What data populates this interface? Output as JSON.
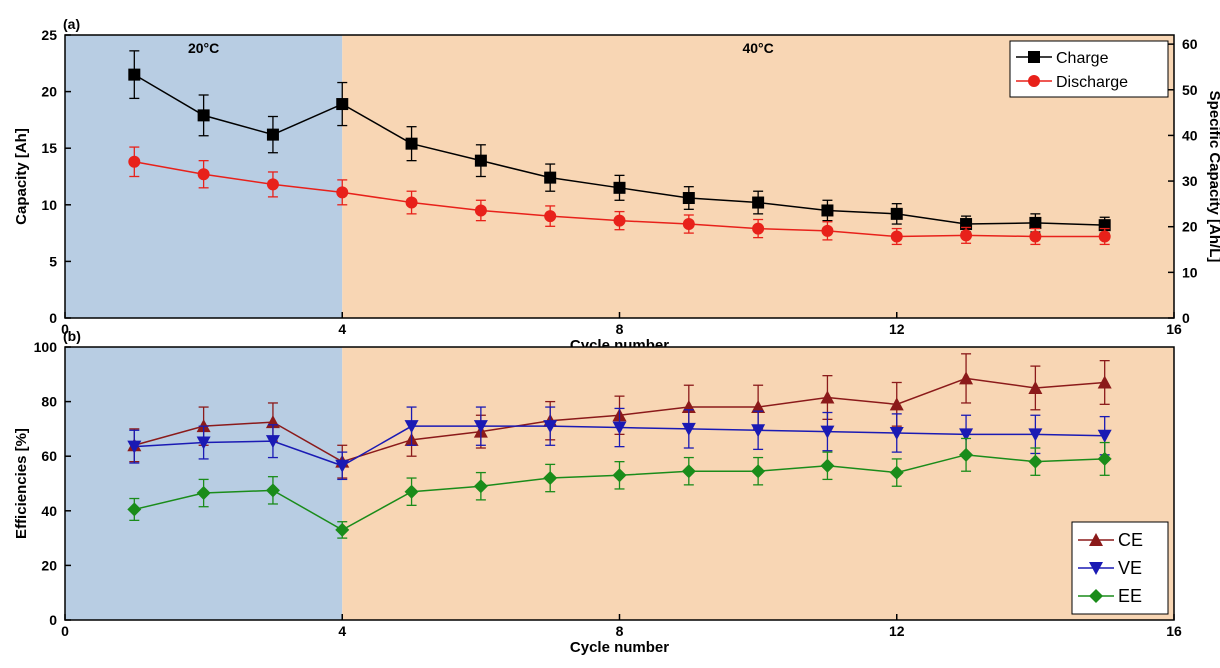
{
  "chart_data": [
    {
      "type": "line",
      "title": "(a)",
      "xlabel": "Cycle number",
      "ylabel": "Capacity [Ah]",
      "y2label": "Specific Capacity [Ah/L]",
      "x": [
        1,
        2,
        3,
        4,
        5,
        6,
        7,
        8,
        9,
        10,
        11,
        12,
        13,
        14,
        15
      ],
      "xlim": [
        0,
        16
      ],
      "xticks": [
        0,
        4,
        8,
        12,
        16
      ],
      "ylim": [
        0,
        25
      ],
      "yticks": [
        0,
        5,
        10,
        15,
        20,
        25
      ],
      "y2lim": [
        0,
        62
      ],
      "y2ticks": [
        0,
        10,
        20,
        30,
        40,
        50,
        60
      ],
      "legend": "upper right",
      "regions": [
        {
          "xlim": [
            0,
            4
          ],
          "color": "#b8cde3",
          "label": "20°C"
        },
        {
          "xlim": [
            4,
            16
          ],
          "color": "#f8d6b4",
          "label": "40°C"
        }
      ],
      "series": [
        {
          "name": "Charge",
          "color": "#000000",
          "marker": "square",
          "values": [
            21.5,
            17.9,
            16.2,
            18.9,
            15.4,
            13.9,
            12.4,
            11.5,
            10.6,
            10.2,
            9.5,
            9.2,
            8.3,
            8.4,
            8.2
          ],
          "errors": [
            2.1,
            1.8,
            1.6,
            1.9,
            1.5,
            1.4,
            1.2,
            1.1,
            1.0,
            1.0,
            0.9,
            0.9,
            0.7,
            0.8,
            0.7
          ]
        },
        {
          "name": "Discharge",
          "color": "#e8211a",
          "marker": "circle",
          "values": [
            13.8,
            12.7,
            11.8,
            11.1,
            10.2,
            9.5,
            9.0,
            8.6,
            8.3,
            7.9,
            7.7,
            7.2,
            7.3,
            7.2,
            7.2
          ],
          "errors": [
            1.3,
            1.2,
            1.1,
            1.1,
            1.0,
            0.9,
            0.9,
            0.8,
            0.8,
            0.8,
            0.8,
            0.7,
            0.7,
            0.7,
            0.7
          ]
        }
      ]
    },
    {
      "type": "line",
      "title": "(b)",
      "xlabel": "Cycle number",
      "ylabel": "Efficiencies [%]",
      "x": [
        1,
        2,
        3,
        4,
        5,
        6,
        7,
        8,
        9,
        10,
        11,
        12,
        13,
        14,
        15
      ],
      "xlim": [
        0,
        16
      ],
      "xticks": [
        0,
        4,
        8,
        12,
        16
      ],
      "ylim": [
        0,
        100
      ],
      "yticks": [
        0,
        20,
        40,
        60,
        80,
        100
      ],
      "legend": "lower right",
      "regions": [
        {
          "xlim": [
            0,
            4
          ],
          "color": "#b8cde3"
        },
        {
          "xlim": [
            4,
            16
          ],
          "color": "#f8d6b4"
        }
      ],
      "series": [
        {
          "name": "CE",
          "color": "#8b1a1a",
          "marker": "triangle-up",
          "values": [
            64,
            71,
            72.5,
            58,
            66,
            69,
            73,
            75,
            78,
            78,
            81.5,
            79,
            88.5,
            85,
            87
          ],
          "errors": [
            6,
            7,
            7,
            6,
            6,
            6,
            7,
            7,
            8,
            8,
            8,
            8,
            9,
            8,
            8
          ]
        },
        {
          "name": "VE",
          "color": "#1a1ab4",
          "marker": "triangle-down",
          "values": [
            63.5,
            65,
            65.5,
            56.5,
            71,
            71,
            71,
            70.5,
            70,
            69.5,
            69,
            68.5,
            68,
            68,
            67.5
          ],
          "errors": [
            6,
            6,
            6,
            5,
            7,
            7,
            7,
            7,
            7,
            7,
            7,
            7,
            7,
            7,
            7
          ]
        },
        {
          "name": "EE",
          "color": "#1a8c1a",
          "marker": "diamond",
          "values": [
            40.5,
            46.5,
            47.5,
            33,
            47,
            49,
            52,
            53,
            54.5,
            54.5,
            56.5,
            54,
            60.5,
            58,
            59
          ],
          "errors": [
            4,
            5,
            5,
            3,
            5,
            5,
            5,
            5,
            5,
            5,
            5,
            5,
            6,
            5,
            6
          ]
        }
      ]
    }
  ]
}
